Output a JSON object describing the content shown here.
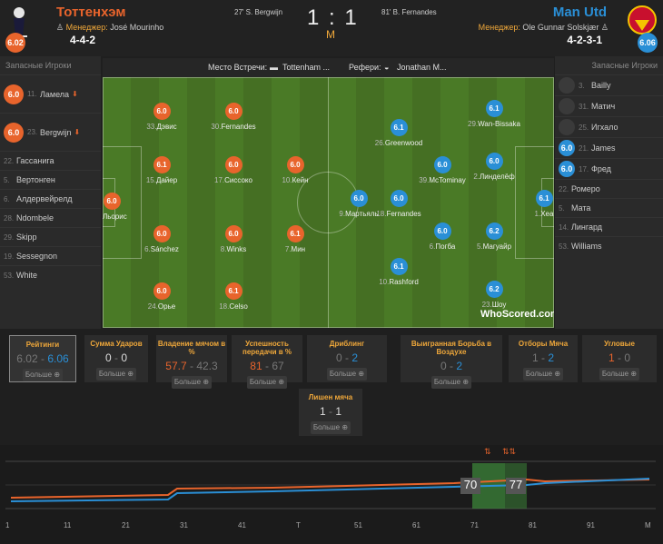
{
  "header": {
    "home": {
      "name": "Тоттенхэм",
      "manager_label": "Менеджер:",
      "manager": "José Mourinho",
      "formation": "4-4-2",
      "rating": "6.02",
      "scorer": "27' S. Bergwijn"
    },
    "away": {
      "name": "Man Utd",
      "manager_label": "Менеджер:",
      "manager": "Ole Gunnar Solskjær",
      "formation": "4-2-3-1",
      "rating": "6.06",
      "scorer": "81' B. Fernandes"
    },
    "score_home": "1",
    "score_sep": ":",
    "score_away": "1",
    "status": "M"
  },
  "venue": {
    "venue_label": "Место Встречи:",
    "venue": "Tottenham ...",
    "referee_label": "Рефери:",
    "referee": "Jonathan M..."
  },
  "home_subs": {
    "title": "Запасные Игроки",
    "players": [
      {
        "num": "11.",
        "name": "Ламела",
        "rating": "6.0",
        "subbed": true
      },
      {
        "num": "23.",
        "name": "Bergwijn",
        "rating": "6.0",
        "subbed": true
      },
      {
        "num": "22.",
        "name": "Гассанига"
      },
      {
        "num": "5.",
        "name": "Вертонген"
      },
      {
        "num": "6.",
        "name": "Алдервейрелд"
      },
      {
        "num": "28.",
        "name": "Ndombele"
      },
      {
        "num": "29.",
        "name": "Skipp"
      },
      {
        "num": "19.",
        "name": "Sessegnon"
      },
      {
        "num": "53.",
        "name": "White"
      }
    ]
  },
  "away_subs": {
    "title": "Запасные Игроки",
    "players": [
      {
        "num": "3.",
        "name": "Bailly",
        "rating": ""
      },
      {
        "num": "31.",
        "name": "Матич",
        "rating": ""
      },
      {
        "num": "25.",
        "name": "Игхало",
        "rating": ""
      },
      {
        "num": "21.",
        "name": "James",
        "rating": "6.0"
      },
      {
        "num": "17.",
        "name": "Фред",
        "rating": "6.0"
      },
      {
        "num": "22.",
        "name": "Ромеро"
      },
      {
        "num": "5.",
        "name": "Мата"
      },
      {
        "num": "14.",
        "name": "Лингард"
      },
      {
        "num": "53.",
        "name": "Williams"
      }
    ]
  },
  "home_players": [
    {
      "num": "1.",
      "name": "Льорис",
      "rating": "6.0"
    },
    {
      "num": "33.",
      "name": "Дэвис",
      "rating": "6.0"
    },
    {
      "num": "15.",
      "name": "Дайер",
      "rating": "6.1"
    },
    {
      "num": "6.",
      "name": "Sánchez",
      "rating": "6.0"
    },
    {
      "num": "24.",
      "name": "Орье",
      "rating": "6.0"
    },
    {
      "num": "30.",
      "name": "Fernandes",
      "rating": "6.0"
    },
    {
      "num": "17.",
      "name": "Сиссоко",
      "rating": "6.0"
    },
    {
      "num": "8.",
      "name": "Winks",
      "rating": "6.0"
    },
    {
      "num": "18.",
      "name": "Celso",
      "rating": "6.1"
    },
    {
      "num": "10.",
      "name": "Кейн",
      "rating": "6.0"
    },
    {
      "num": "7.",
      "name": "Мин",
      "rating": "6.1"
    }
  ],
  "away_players": [
    {
      "num": "1.",
      "name": "Хеа",
      "rating": "6.1"
    },
    {
      "num": "29.",
      "name": "Wan-Bissaka",
      "rating": "6.1"
    },
    {
      "num": "2.",
      "name": "Линделёф",
      "rating": "6.0"
    },
    {
      "num": "5.",
      "name": "Магуайр",
      "rating": "6.2"
    },
    {
      "num": "23.",
      "name": "Шоу",
      "rating": "6.2"
    },
    {
      "num": "39.",
      "name": "McTominay",
      "rating": "6.0"
    },
    {
      "num": "6.",
      "name": "Погба",
      "rating": "6.0"
    },
    {
      "num": "26.",
      "name": "Greenwood",
      "rating": "6.1"
    },
    {
      "num": "18.",
      "name": "Fernandes",
      "rating": "6.0"
    },
    {
      "num": "10.",
      "name": "Rashford",
      "rating": "6.1"
    },
    {
      "num": "9.",
      "name": "Мартьяль",
      "rating": "6.0"
    }
  ],
  "logo": "WhoScored.com",
  "stats": [
    {
      "title": "Рейтинги",
      "home": "6.02",
      "away": "6.06",
      "more": "Больше"
    },
    {
      "title": "Сумма Ударов",
      "home": "0",
      "away": "0",
      "more": "Больше"
    },
    {
      "title": "Владение мячом в %",
      "home": "57.7",
      "away": "42.3",
      "more": "Больше"
    },
    {
      "title": "Успешность передачи в %",
      "home": "81",
      "away": "67",
      "more": "Больше"
    },
    {
      "title": "Дриблинг",
      "home": "0",
      "away": "2",
      "more": "Больше"
    },
    {
      "title": "Выигранная Борьба в Воздухе",
      "home": "0",
      "away": "2",
      "more": "Больше"
    },
    {
      "title": "Отборы Мяча",
      "home": "1",
      "away": "2",
      "more": "Больше"
    },
    {
      "title": "Угловые",
      "home": "1",
      "away": "0",
      "more": "Больше"
    },
    {
      "title": "Лишен мяча",
      "home": "1",
      "away": "1",
      "more": "Больше"
    }
  ],
  "timeline": {
    "ticks": [
      "1",
      "11",
      "21",
      "31",
      "41",
      "Т",
      "51",
      "61",
      "71",
      "81",
      "91",
      "М"
    ],
    "marker1": "70",
    "marker2": "77"
  },
  "colors": {
    "home": "#e8642c",
    "away": "#2a8fd6",
    "accent": "#f0a83a"
  }
}
